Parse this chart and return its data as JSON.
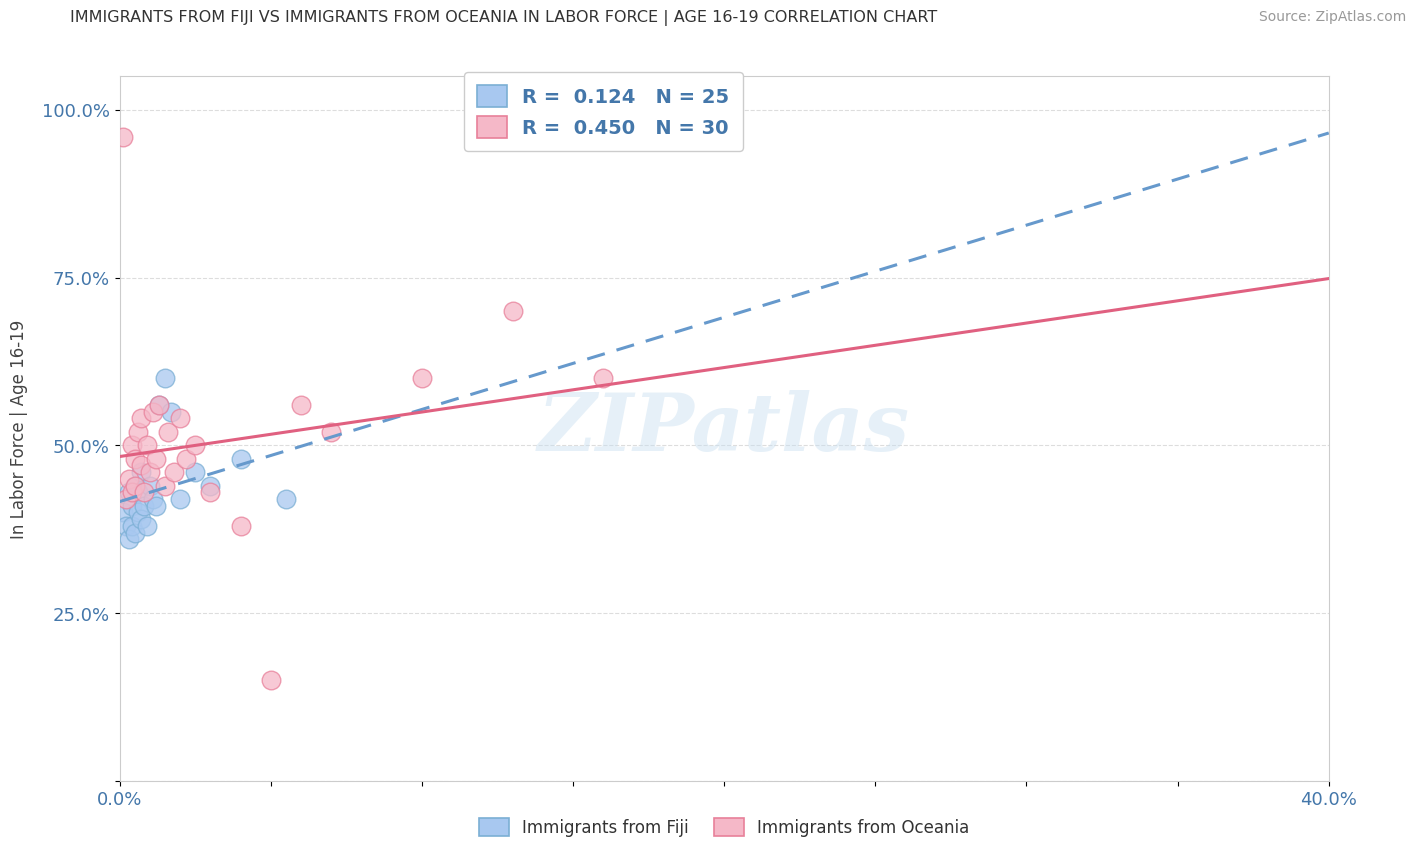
{
  "title": "IMMIGRANTS FROM FIJI VS IMMIGRANTS FROM OCEANIA IN LABOR FORCE | AGE 16-19 CORRELATION CHART",
  "source": "Source: ZipAtlas.com",
  "ylabel": "In Labor Force | Age 16-19",
  "xlim": [
    0.0,
    0.4
  ],
  "ylim": [
    0.0,
    1.05
  ],
  "xticks": [
    0.0,
    0.05,
    0.1,
    0.15,
    0.2,
    0.25,
    0.3,
    0.35,
    0.4
  ],
  "yticks": [
    0.0,
    0.25,
    0.5,
    0.75,
    1.0
  ],
  "fiji_color": "#a8c8f0",
  "fiji_edge_color": "#7bafd4",
  "oceania_color": "#f5b8c8",
  "oceania_edge_color": "#e8809a",
  "fiji_R": 0.124,
  "fiji_N": 25,
  "oceania_R": 0.45,
  "oceania_N": 30,
  "fiji_line_color": "#6699cc",
  "oceania_line_color": "#e06080",
  "watermark": "ZIPatlas",
  "fiji_x": [
    0.001,
    0.002,
    0.003,
    0.003,
    0.004,
    0.004,
    0.005,
    0.005,
    0.006,
    0.006,
    0.007,
    0.007,
    0.008,
    0.009,
    0.01,
    0.011,
    0.012,
    0.013,
    0.015,
    0.017,
    0.02,
    0.025,
    0.03,
    0.04,
    0.055
  ],
  "fiji_y": [
    0.4,
    0.38,
    0.43,
    0.36,
    0.41,
    0.38,
    0.44,
    0.37,
    0.43,
    0.4,
    0.46,
    0.39,
    0.41,
    0.38,
    0.44,
    0.42,
    0.41,
    0.56,
    0.6,
    0.55,
    0.42,
    0.46,
    0.44,
    0.48,
    0.42
  ],
  "oceania_x": [
    0.001,
    0.002,
    0.003,
    0.004,
    0.004,
    0.005,
    0.005,
    0.006,
    0.007,
    0.007,
    0.008,
    0.009,
    0.01,
    0.011,
    0.012,
    0.013,
    0.015,
    0.016,
    0.018,
    0.02,
    0.022,
    0.025,
    0.03,
    0.04,
    0.05,
    0.06,
    0.07,
    0.1,
    0.13,
    0.16
  ],
  "oceania_y": [
    0.96,
    0.42,
    0.45,
    0.43,
    0.5,
    0.48,
    0.44,
    0.52,
    0.47,
    0.54,
    0.43,
    0.5,
    0.46,
    0.55,
    0.48,
    0.56,
    0.44,
    0.52,
    0.46,
    0.54,
    0.48,
    0.5,
    0.43,
    0.38,
    0.15,
    0.56,
    0.52,
    0.6,
    0.7,
    0.6
  ],
  "background_color": "#ffffff",
  "grid_color": "#dddddd",
  "title_color": "#333333",
  "tick_color": "#4477aa"
}
